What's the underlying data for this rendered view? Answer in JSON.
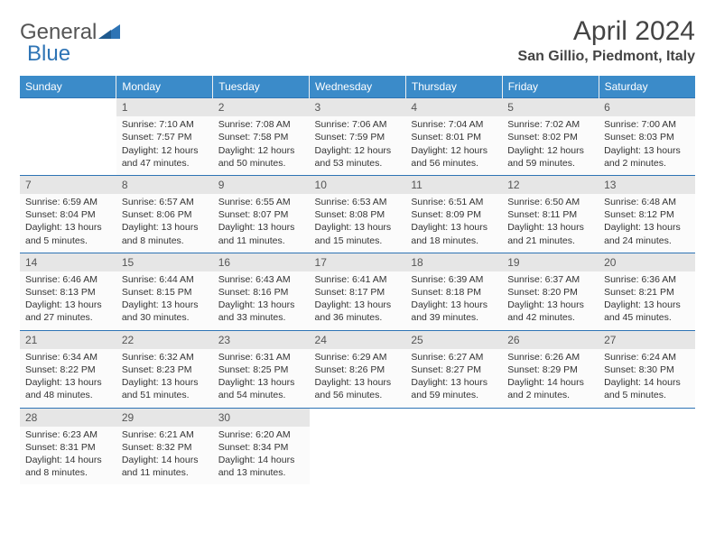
{
  "logo": {
    "part1": "General",
    "part2": "Blue"
  },
  "title": "April 2024",
  "location": "San Gillio, Piedmont, Italy",
  "style": {
    "header_bg": "#3b8bc9",
    "header_text": "#ffffff",
    "border_color": "#2e74b5",
    "day_header_bg": "#e6e6e6",
    "cell_bg": "#fbfbfb",
    "body_font_size": 10.5,
    "title_font_size": 30,
    "location_font_size": 16
  },
  "weekdays": [
    "Sunday",
    "Monday",
    "Tuesday",
    "Wednesday",
    "Thursday",
    "Friday",
    "Saturday"
  ],
  "weeks": [
    [
      null,
      {
        "d": "1",
        "sr": "7:10 AM",
        "ss": "7:57 PM",
        "dl": "12 hours and 47 minutes."
      },
      {
        "d": "2",
        "sr": "7:08 AM",
        "ss": "7:58 PM",
        "dl": "12 hours and 50 minutes."
      },
      {
        "d": "3",
        "sr": "7:06 AM",
        "ss": "7:59 PM",
        "dl": "12 hours and 53 minutes."
      },
      {
        "d": "4",
        "sr": "7:04 AM",
        "ss": "8:01 PM",
        "dl": "12 hours and 56 minutes."
      },
      {
        "d": "5",
        "sr": "7:02 AM",
        "ss": "8:02 PM",
        "dl": "12 hours and 59 minutes."
      },
      {
        "d": "6",
        "sr": "7:00 AM",
        "ss": "8:03 PM",
        "dl": "13 hours and 2 minutes."
      }
    ],
    [
      {
        "d": "7",
        "sr": "6:59 AM",
        "ss": "8:04 PM",
        "dl": "13 hours and 5 minutes."
      },
      {
        "d": "8",
        "sr": "6:57 AM",
        "ss": "8:06 PM",
        "dl": "13 hours and 8 minutes."
      },
      {
        "d": "9",
        "sr": "6:55 AM",
        "ss": "8:07 PM",
        "dl": "13 hours and 11 minutes."
      },
      {
        "d": "10",
        "sr": "6:53 AM",
        "ss": "8:08 PM",
        "dl": "13 hours and 15 minutes."
      },
      {
        "d": "11",
        "sr": "6:51 AM",
        "ss": "8:09 PM",
        "dl": "13 hours and 18 minutes."
      },
      {
        "d": "12",
        "sr": "6:50 AM",
        "ss": "8:11 PM",
        "dl": "13 hours and 21 minutes."
      },
      {
        "d": "13",
        "sr": "6:48 AM",
        "ss": "8:12 PM",
        "dl": "13 hours and 24 minutes."
      }
    ],
    [
      {
        "d": "14",
        "sr": "6:46 AM",
        "ss": "8:13 PM",
        "dl": "13 hours and 27 minutes."
      },
      {
        "d": "15",
        "sr": "6:44 AM",
        "ss": "8:15 PM",
        "dl": "13 hours and 30 minutes."
      },
      {
        "d": "16",
        "sr": "6:43 AM",
        "ss": "8:16 PM",
        "dl": "13 hours and 33 minutes."
      },
      {
        "d": "17",
        "sr": "6:41 AM",
        "ss": "8:17 PM",
        "dl": "13 hours and 36 minutes."
      },
      {
        "d": "18",
        "sr": "6:39 AM",
        "ss": "8:18 PM",
        "dl": "13 hours and 39 minutes."
      },
      {
        "d": "19",
        "sr": "6:37 AM",
        "ss": "8:20 PM",
        "dl": "13 hours and 42 minutes."
      },
      {
        "d": "20",
        "sr": "6:36 AM",
        "ss": "8:21 PM",
        "dl": "13 hours and 45 minutes."
      }
    ],
    [
      {
        "d": "21",
        "sr": "6:34 AM",
        "ss": "8:22 PM",
        "dl": "13 hours and 48 minutes."
      },
      {
        "d": "22",
        "sr": "6:32 AM",
        "ss": "8:23 PM",
        "dl": "13 hours and 51 minutes."
      },
      {
        "d": "23",
        "sr": "6:31 AM",
        "ss": "8:25 PM",
        "dl": "13 hours and 54 minutes."
      },
      {
        "d": "24",
        "sr": "6:29 AM",
        "ss": "8:26 PM",
        "dl": "13 hours and 56 minutes."
      },
      {
        "d": "25",
        "sr": "6:27 AM",
        "ss": "8:27 PM",
        "dl": "13 hours and 59 minutes."
      },
      {
        "d": "26",
        "sr": "6:26 AM",
        "ss": "8:29 PM",
        "dl": "14 hours and 2 minutes."
      },
      {
        "d": "27",
        "sr": "6:24 AM",
        "ss": "8:30 PM",
        "dl": "14 hours and 5 minutes."
      }
    ],
    [
      {
        "d": "28",
        "sr": "6:23 AM",
        "ss": "8:31 PM",
        "dl": "14 hours and 8 minutes."
      },
      {
        "d": "29",
        "sr": "6:21 AM",
        "ss": "8:32 PM",
        "dl": "14 hours and 11 minutes."
      },
      {
        "d": "30",
        "sr": "6:20 AM",
        "ss": "8:34 PM",
        "dl": "14 hours and 13 minutes."
      },
      null,
      null,
      null,
      null
    ]
  ],
  "labels": {
    "sunrise": "Sunrise: ",
    "sunset": "Sunset: ",
    "daylight": "Daylight: "
  }
}
